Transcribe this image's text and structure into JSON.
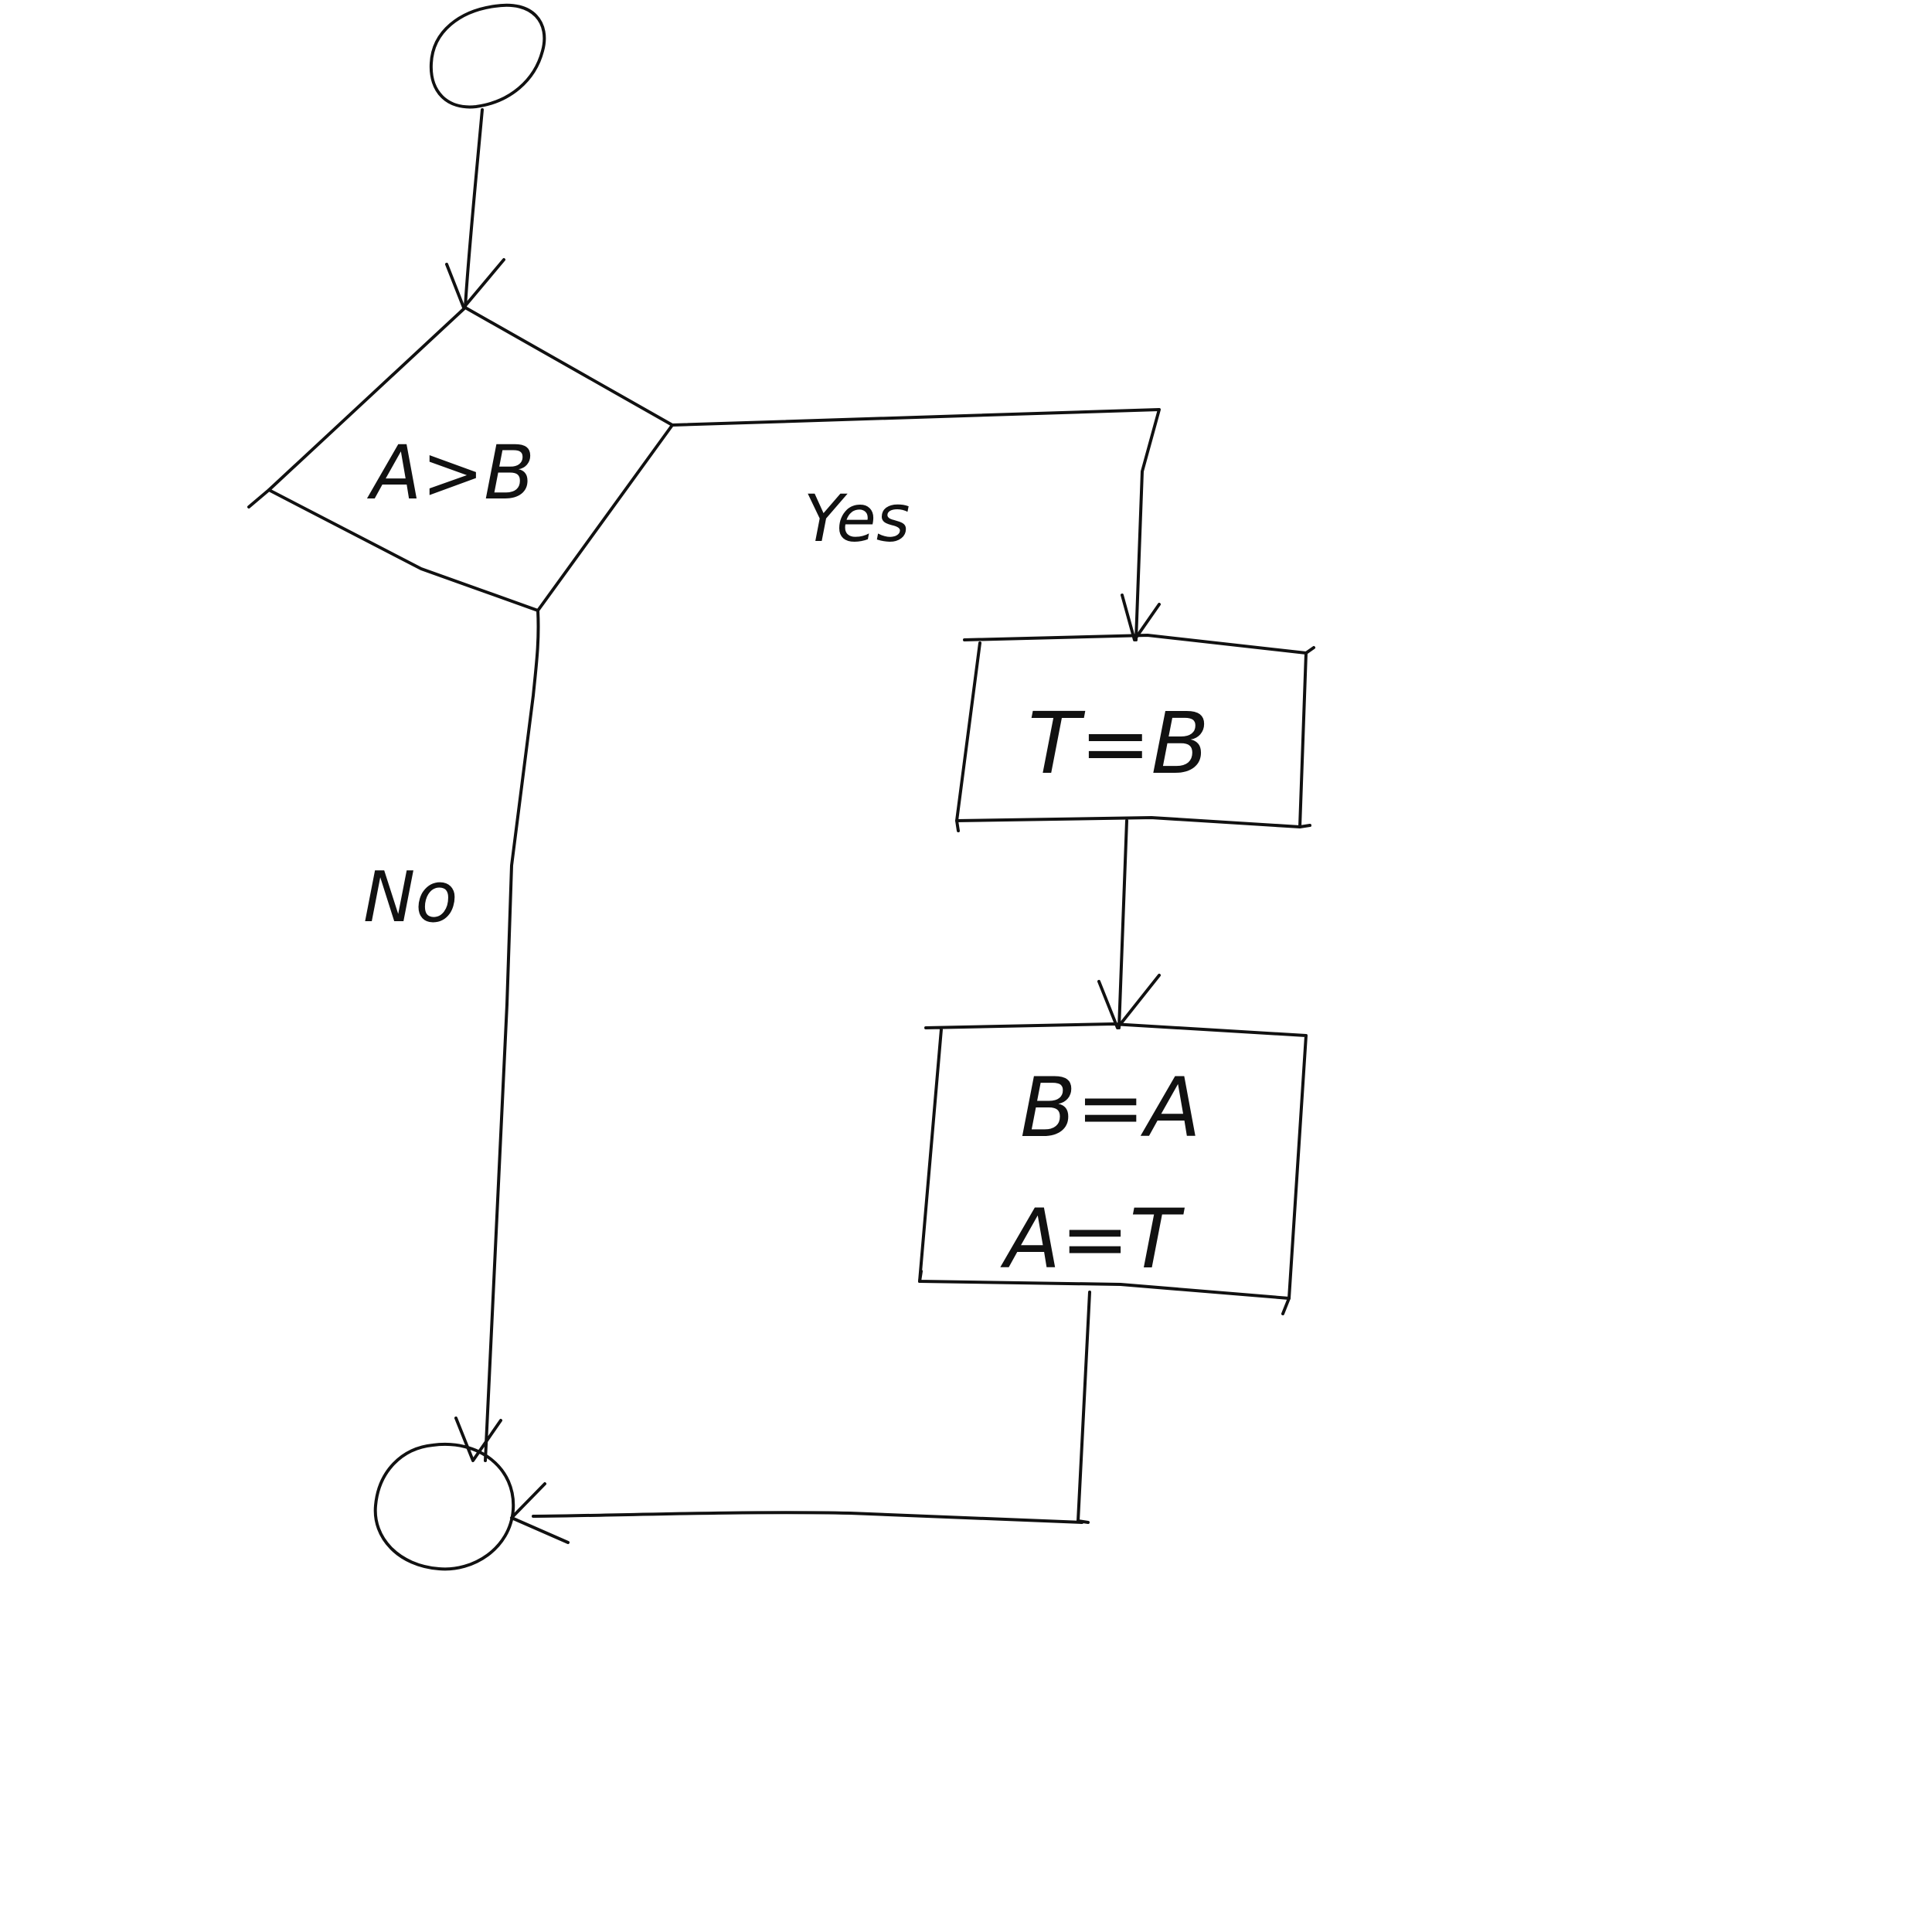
{
  "decision": {
    "text": "A>B"
  },
  "yes_label": "Yes",
  "no_label": "No",
  "process1": {
    "text": "T=B"
  },
  "process2": {
    "line1": "B=A",
    "line2": "A=T"
  }
}
